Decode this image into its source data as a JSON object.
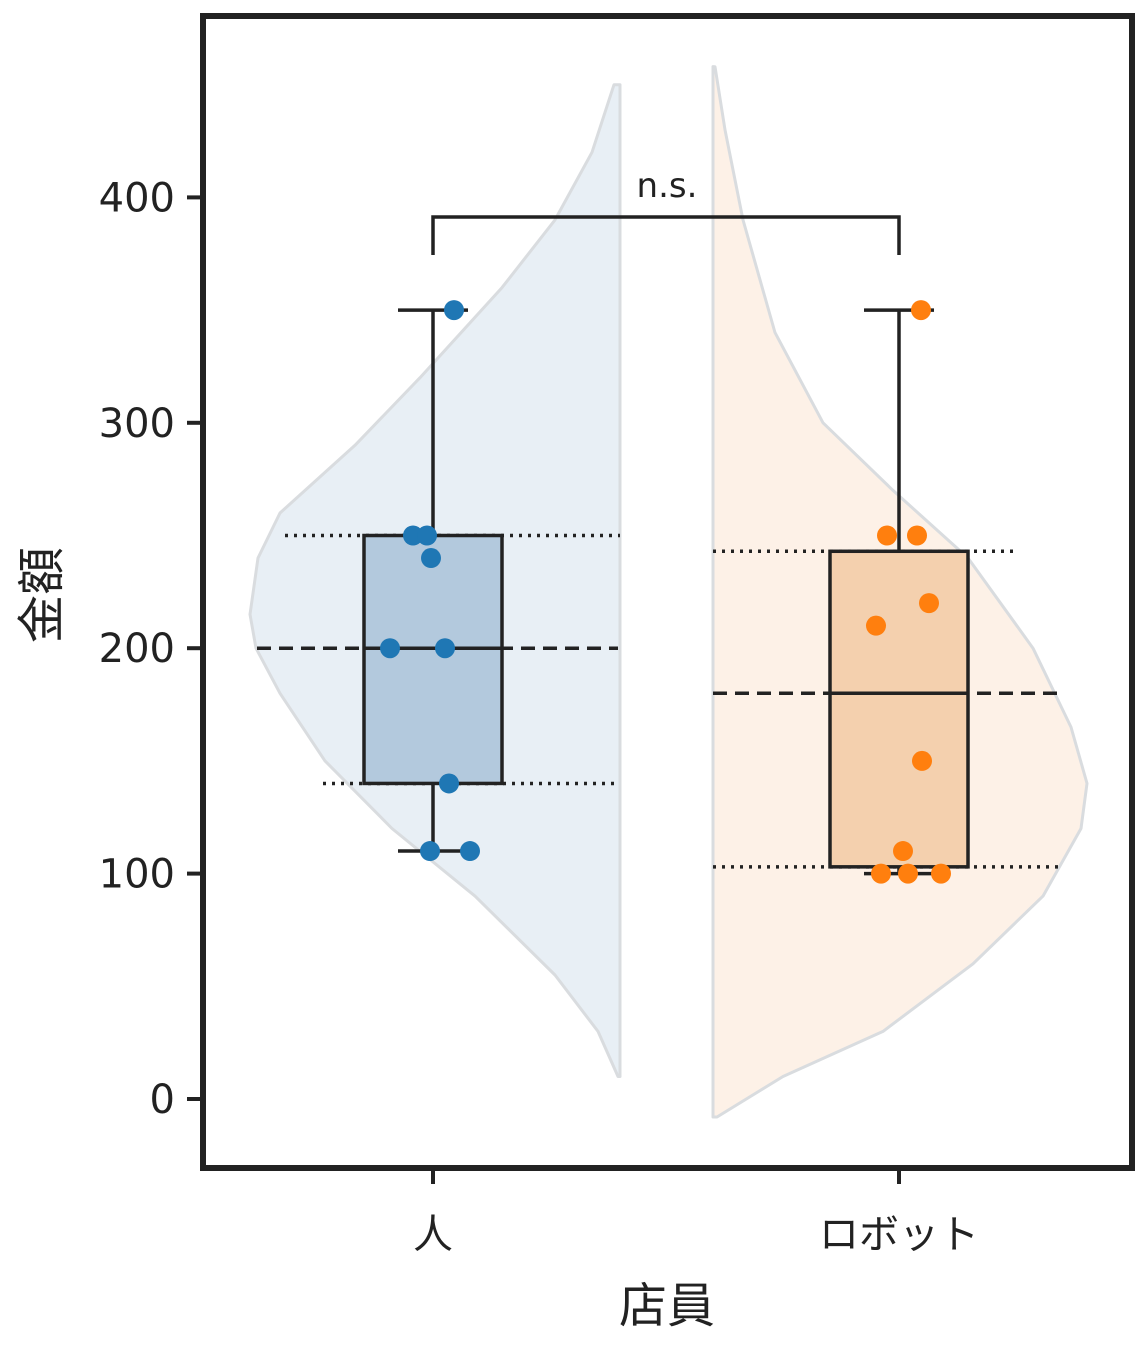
{
  "chart_data": {
    "type": "violin",
    "title": "",
    "xlabel": "店員",
    "ylabel": "金額",
    "ylim": [
      -30,
      480
    ],
    "yticks": [
      0,
      100,
      200,
      300,
      400
    ],
    "grid": false,
    "categories": [
      "人",
      "ロボット"
    ],
    "colors": {
      "人": "#1f77b4",
      "ロボット": "#ff7f0e",
      "人_box": "#b3c9dd",
      "ロボット_box": "#f4d0ae",
      "人_violin": "#e8eff5",
      "ロボット_violin": "#fdf1e7"
    },
    "series": [
      {
        "name": "人",
        "points": [
          350,
          250,
          250,
          240,
          200,
          200,
          140,
          110,
          110
        ],
        "box": {
          "q1": 140,
          "median": 200,
          "q3": 250,
          "whisker_low": 110,
          "whisker_high": 350
        },
        "violin_quartiles": {
          "q1": 140,
          "median": 200,
          "q3": 250
        },
        "violin_range": [
          10,
          450
        ]
      },
      {
        "name": "ロボット",
        "points": [
          350,
          250,
          250,
          220,
          210,
          150,
          110,
          100,
          100,
          100
        ],
        "box": {
          "q1": 103,
          "median": 180,
          "q3": 243,
          "whisker_low": 100,
          "whisker_high": 350
        },
        "violin_quartiles": {
          "q1": 103,
          "median": 180,
          "q3": 243
        },
        "violin_range": [
          -8,
          458
        ]
      }
    ],
    "annotations": [
      {
        "text": "n.s.",
        "between": [
          "人",
          "ロボット"
        ],
        "y": 390
      }
    ]
  }
}
